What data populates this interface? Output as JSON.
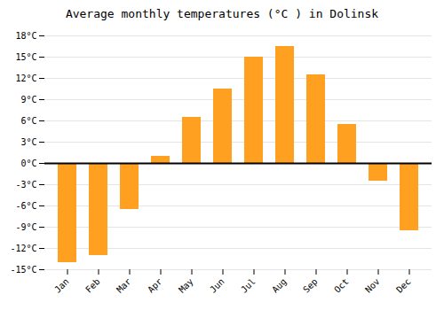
{
  "chart_data": {
    "type": "bar",
    "title": "Average monthly temperatures (°C ) in Dolinsk",
    "categories": [
      "Jan",
      "Feb",
      "Mar",
      "Apr",
      "May",
      "Jun",
      "Jul",
      "Aug",
      "Sep",
      "Oct",
      "Nov",
      "Dec"
    ],
    "values": [
      -14,
      -13,
      -6.5,
      1,
      6.5,
      10.5,
      15,
      16.5,
      12.5,
      5.5,
      -2.5,
      -9.5
    ],
    "color": "#FFA020",
    "ylim": [
      -15,
      18
    ],
    "yticks": [
      {
        "value": -15,
        "label": "-15°C"
      },
      {
        "value": -12,
        "label": "-12°C"
      },
      {
        "value": -9,
        "label": "-9°C"
      },
      {
        "value": -6,
        "label": "-6°C"
      },
      {
        "value": -3,
        "label": "-3°C"
      },
      {
        "value": 0,
        "label": "0°C"
      },
      {
        "value": 3,
        "label": "3°C"
      },
      {
        "value": 6,
        "label": "6°C"
      },
      {
        "value": 9,
        "label": "9°C"
      },
      {
        "value": 12,
        "label": "12°C"
      },
      {
        "value": 15,
        "label": "15°C"
      },
      {
        "value": 18,
        "label": "18°C"
      }
    ],
    "grid": true
  }
}
